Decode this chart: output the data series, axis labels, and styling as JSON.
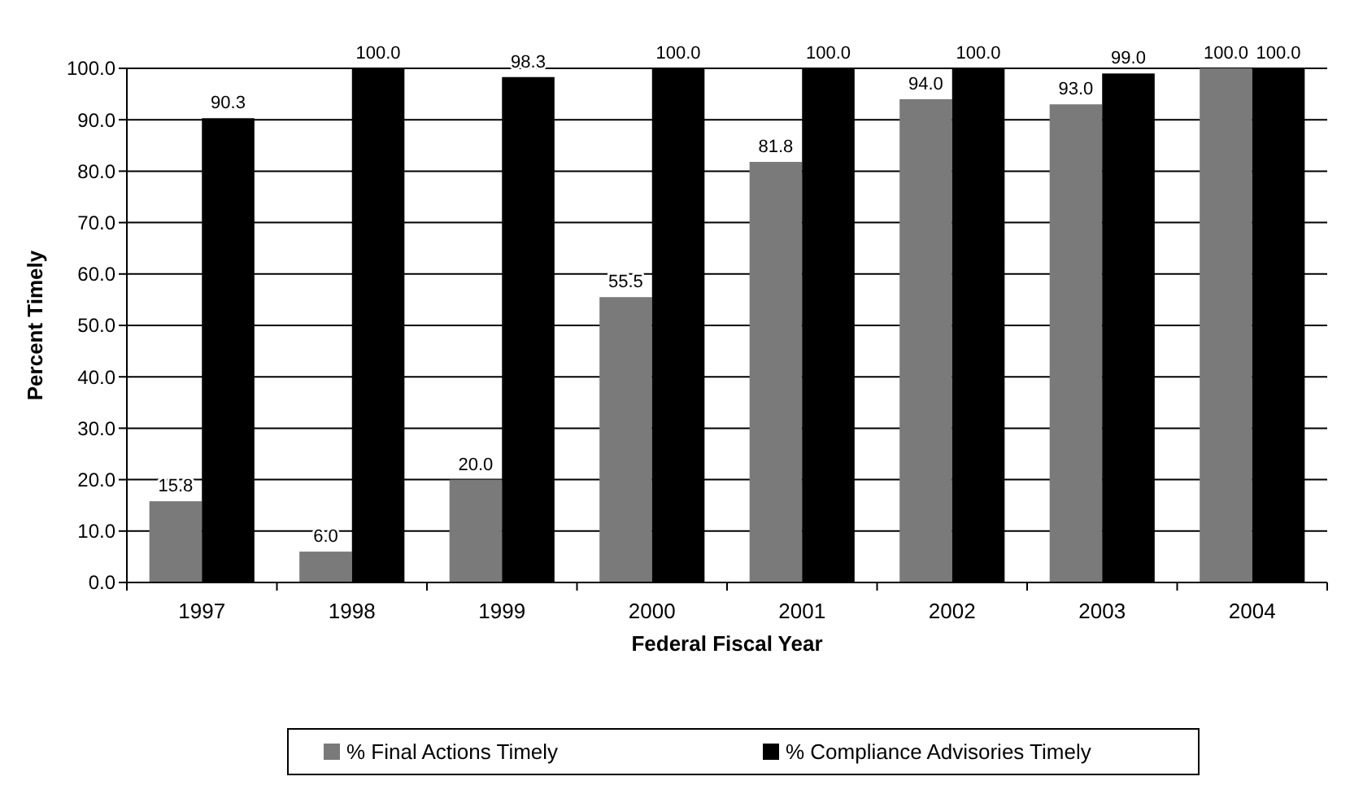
{
  "chart_data": {
    "type": "bar",
    "xlabel": "Federal Fiscal Year",
    "ylabel": "Percent Timely",
    "categories": [
      "1997",
      "1998",
      "1999",
      "2000",
      "2001",
      "2002",
      "2003",
      "2004"
    ],
    "series": [
      {
        "name": "% Final Actions Timely",
        "color": "#7a7a7a",
        "values": [
          15.8,
          6.0,
          20.0,
          55.5,
          81.8,
          94.0,
          93.0,
          100.0
        ],
        "value_labels": [
          "15.8",
          "6.0",
          "20.0",
          "55.5",
          "81.8",
          "94.0",
          "93.0",
          "100.0"
        ]
      },
      {
        "name": "% Compliance Advisories Timely",
        "color": "#000000",
        "values": [
          90.3,
          100.0,
          98.3,
          100.0,
          100.0,
          100.0,
          99.0,
          100.0
        ],
        "value_labels": [
          "90.3",
          "100.0",
          "98.3",
          "100.0",
          "100.0",
          "100.0",
          "99.0",
          "100.0"
        ]
      }
    ],
    "ylim": [
      0,
      100
    ],
    "yticks": [
      {
        "value": 0,
        "label": "0.0"
      },
      {
        "value": 10,
        "label": "10.0"
      },
      {
        "value": 20,
        "label": "20.0"
      },
      {
        "value": 30,
        "label": "30.0"
      },
      {
        "value": 40,
        "label": "40.0"
      },
      {
        "value": 50,
        "label": "50.0"
      },
      {
        "value": 60,
        "label": "60.0"
      },
      {
        "value": 70,
        "label": "70.0"
      },
      {
        "value": 80,
        "label": "80.0"
      },
      {
        "value": 90,
        "label": "90.0"
      },
      {
        "value": 100,
        "label": "100.0"
      }
    ],
    "grid": "y",
    "legend": "bottom"
  }
}
